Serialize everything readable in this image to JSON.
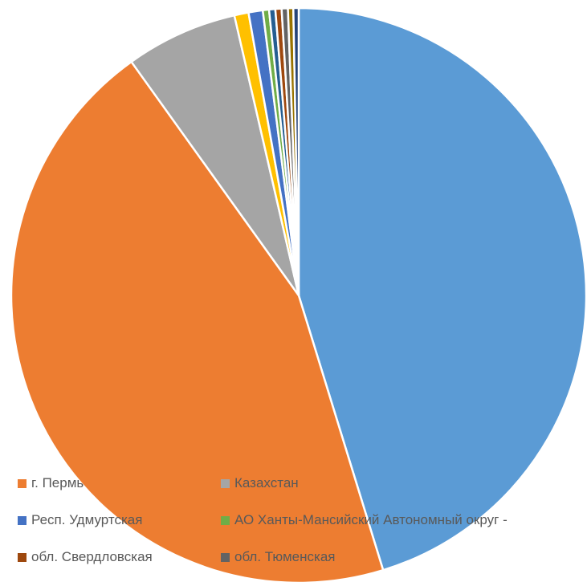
{
  "chart_data": {
    "type": "pie",
    "slices": [
      {
        "label": "",
        "value": 45.3,
        "color": "#5B9BD5"
      },
      {
        "label": "г. Пермь",
        "value": 44.9,
        "color": "#ED7D31"
      },
      {
        "label": "Казахстан",
        "value": 6.3,
        "color": "#A5A5A5"
      },
      {
        "label": "",
        "value": 0.8,
        "color": "#FFC000"
      },
      {
        "label": "Респ. Удмуртская",
        "value": 0.8,
        "color": "#4472C4"
      },
      {
        "label": "АО Ханты-Мансийский Автономный округ -",
        "value": 0.35,
        "color": "#70AD47"
      },
      {
        "label": "",
        "value": 0.35,
        "color": "#255E91"
      },
      {
        "label": "обл. Свердловская",
        "value": 0.35,
        "color": "#9E480E"
      },
      {
        "label": "обл. Тюменская",
        "value": 0.35,
        "color": "#636363"
      },
      {
        "label": "",
        "value": 0.3,
        "color": "#997300"
      },
      {
        "label": "",
        "value": 0.3,
        "color": "#264478"
      }
    ],
    "legend": {
      "position": "bottom-left",
      "entries": [
        {
          "label": "г. Пермь",
          "color": "#ED7D31"
        },
        {
          "label": "Казахстан",
          "color": "#A5A5A5"
        },
        {
          "label": "Респ. Удмуртская",
          "color": "#4472C4"
        },
        {
          "label": "АО Ханты-Мансийский Автономный округ -",
          "color": "#70AD47"
        },
        {
          "label": "обл. Свердловская",
          "color": "#9E480E"
        },
        {
          "label": "обл. Тюменская",
          "color": "#636363"
        }
      ]
    }
  }
}
